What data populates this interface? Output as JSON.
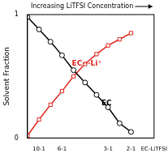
{
  "chart_data": {
    "type": "line",
    "title": "Increasing LiTFSI Concentration",
    "y_label": "Solvent Fraction",
    "categories": [
      null,
      "10-1",
      null,
      "6-1",
      null,
      null,
      null,
      "3-1",
      null,
      "2-1",
      null,
      "EC-LiTFSI"
    ],
    "series": [
      {
        "name": "EC",
        "color": "#000000",
        "marker": "circle",
        "line_style": "solid",
        "values": [
          0.98,
          0.88,
          0.78,
          0.67,
          0.55,
          0.45,
          0.35,
          0.25,
          0.12,
          0.05,
          null,
          null
        ]
      },
      {
        "name": "EC···Li⁺",
        "color": "#e0251b",
        "marker": "square",
        "line_style": "solid",
        "values": [
          0.02,
          0.15,
          0.27,
          0.38,
          0.5,
          0.6,
          0.68,
          0.75,
          0.8,
          0.85,
          null,
          null
        ]
      }
    ],
    "ylim": [
      0,
      1
    ],
    "yticks": [
      0,
      1
    ],
    "grid": false
  }
}
